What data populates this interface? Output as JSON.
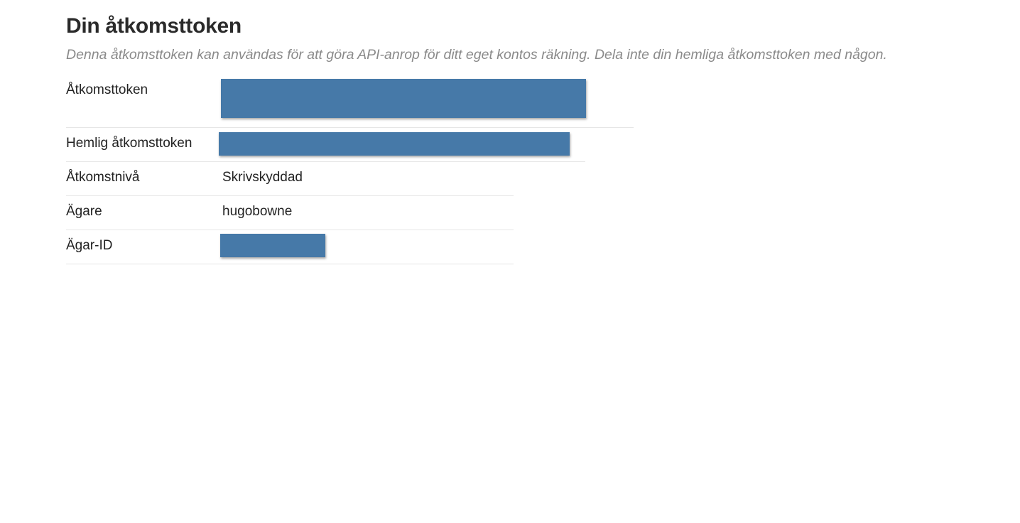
{
  "header": {
    "title": "Din åtkomsttoken",
    "subtitle": "Denna åtkomsttoken kan användas för att göra API-anrop för ditt eget kontos räkning. Dela inte din hemliga åtkomsttoken med någon."
  },
  "table": {
    "rows": [
      {
        "label": "Åtkomsttoken"
      },
      {
        "label": "Hemlig åtkomsttoken"
      },
      {
        "label": "Åtkomstnivå",
        "value": "Skrivskyddad"
      },
      {
        "label": "Ägare",
        "value": "hugobowne"
      },
      {
        "label": "Ägar-ID"
      }
    ]
  }
}
